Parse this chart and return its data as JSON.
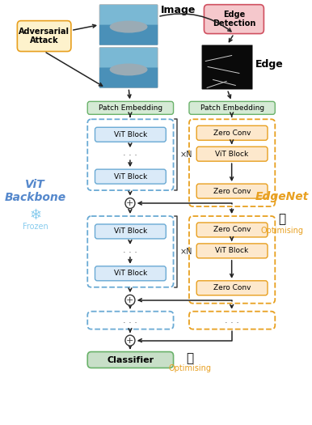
{
  "fig_width": 3.86,
  "fig_height": 5.25,
  "dpi": 100,
  "bg_color": "#ffffff",
  "colors": {
    "patch_embed_fill": "#d5ead5",
    "patch_embed_edge": "#6ab26a",
    "vit_block_fill": "#daeaf8",
    "vit_block_edge": "#6aaad4",
    "zero_conv_fill": "#fde8cc",
    "zero_conv_edge": "#e8a020",
    "classifier_fill": "#c8dfc8",
    "classifier_edge": "#6ab26a",
    "adv_fill": "#fdf2cc",
    "adv_edge": "#e8a020",
    "edge_det_fill": "#f5c8cc",
    "edge_det_edge": "#d05060",
    "dashed_blue": "#6aaad4",
    "dashed_orange": "#e8a020",
    "arrow_color": "#222222",
    "vit_label_color": "#5588cc",
    "edgenet_label_color": "#e8a020",
    "frozen_label_color": "#88ccee",
    "optimising_label_color": "#e8a020"
  },
  "labels": {
    "image": "Image",
    "edge": "Edge",
    "adversarial": "Adversarial\nAttack",
    "edge_detection": "Edge\nDetection",
    "patch_embed": "Patch Embedding",
    "vit_block": "ViT Block",
    "zero_conv": "Zero Conv",
    "classifier": "Classifier",
    "vit_backbone": "ViT\nBackbone",
    "frozen": "Frozen",
    "edgenet": "EdgeNet",
    "optimising": "Optimising",
    "xN": "×N"
  }
}
